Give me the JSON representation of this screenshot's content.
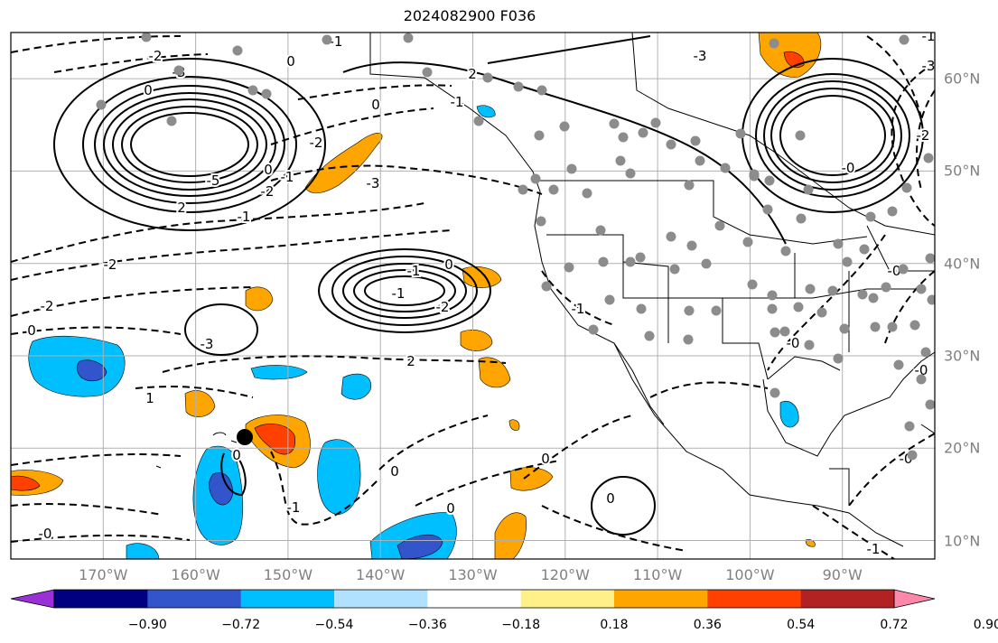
{
  "title": "2024082900 F036",
  "map": {
    "lon_range": [
      -180,
      -80
    ],
    "lat_range": [
      8,
      65
    ],
    "lon_ticks": [
      {
        "lon": -170,
        "label": "170°W"
      },
      {
        "lon": -160,
        "label": "160°W"
      },
      {
        "lon": -150,
        "label": "150°W"
      },
      {
        "lon": -140,
        "label": "140°W"
      },
      {
        "lon": -130,
        "label": "130°W"
      },
      {
        "lon": -120,
        "label": "120°W"
      },
      {
        "lon": -110,
        "label": "110°W"
      },
      {
        "lon": -100,
        "label": "100°W"
      },
      {
        "lon": -90,
        "label": "90°W"
      }
    ],
    "lat_ticks": [
      {
        "lat": 60,
        "label": "60°N"
      },
      {
        "lat": 50,
        "label": "50°N"
      },
      {
        "lat": 40,
        "label": "40°N"
      },
      {
        "lat": 30,
        "label": "30°N"
      },
      {
        "lat": 20,
        "label": "20°N"
      },
      {
        "lat": 10,
        "label": "10°N"
      }
    ],
    "contour_labels": [
      "-1",
      "0",
      "-2",
      "-3",
      "0",
      "2",
      "-1",
      "0",
      "-3",
      "-2",
      "2",
      "-1",
      "0",
      "-1",
      "-2",
      "-5",
      "-2",
      "-2",
      "0",
      "-3",
      "2",
      "1",
      "-1",
      "0",
      "-2",
      "-1",
      "0",
      "0",
      "-1",
      "0",
      "0",
      "-0",
      "0",
      "-1",
      "-0",
      "-0",
      "-1",
      "-0",
      "-0",
      "-0",
      "-3",
      "-3",
      "-2",
      "-1"
    ],
    "marker_colors": {
      "station": "#8c8c8c",
      "point": "#000000"
    }
  },
  "colorbar": {
    "labels": [
      "−0.90",
      "−0.72",
      "−0.54",
      "−0.36",
      "−0.18",
      "0.18",
      "0.36",
      "0.54",
      "0.72",
      "0.90"
    ],
    "colors": [
      "#9b30d9",
      "#000080",
      "#3355cc",
      "#00bfff",
      "#b0e2ff",
      "#ffffff",
      "#fff08a",
      "#ffa500",
      "#ff4000",
      "#b22222",
      "#ff88aa"
    ]
  }
}
